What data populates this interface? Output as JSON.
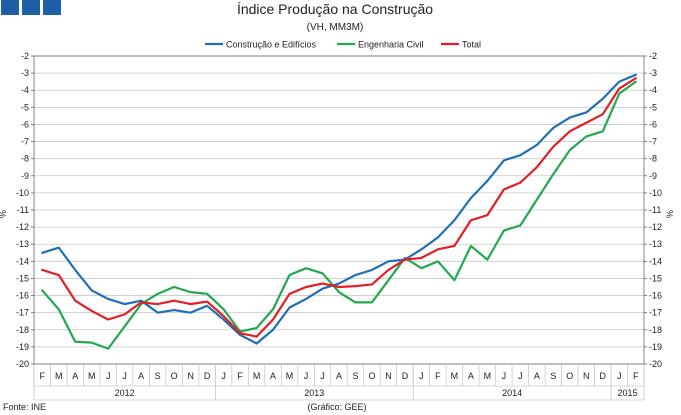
{
  "colors": {
    "logo": "#1f5fa8",
    "construcao": "#1f6fb6",
    "engenharia": "#22a850",
    "total": "#e21e26",
    "grid": "#c8c8c8",
    "axis": "#666666"
  },
  "chart_data": {
    "type": "line",
    "title": "Índice Produção na Construção",
    "subtitle": "(VH, MM3M)",
    "ylabel_left": "%",
    "ylabel_right": "%",
    "ylim": [
      -20,
      -2
    ],
    "yticks": [
      -2,
      -3,
      -4,
      -5,
      -6,
      -7,
      -8,
      -9,
      -10,
      -11,
      -12,
      -13,
      -14,
      -15,
      -16,
      -17,
      -18,
      -19,
      -20
    ],
    "grid": true,
    "legend_position": "top-center",
    "categories": [
      "F",
      "M",
      "A",
      "M",
      "J",
      "J",
      "A",
      "S",
      "O",
      "N",
      "D",
      "J",
      "F",
      "M",
      "A",
      "M",
      "J",
      "J",
      "A",
      "S",
      "O",
      "N",
      "D",
      "J",
      "F",
      "M",
      "A",
      "M",
      "J",
      "J",
      "A",
      "S",
      "O",
      "N",
      "D",
      "J",
      "F"
    ],
    "years": [
      {
        "label": "2012",
        "start": 0,
        "end": 10
      },
      {
        "label": "2013",
        "start": 11,
        "end": 22
      },
      {
        "label": "2014",
        "start": 23,
        "end": 34
      },
      {
        "label": "2015",
        "start": 35,
        "end": 36
      }
    ],
    "series": [
      {
        "name": "Construção e Edifícios",
        "color_key": "construcao",
        "values": [
          -13.5,
          -13.2,
          -14.5,
          -15.7,
          -16.2,
          -16.5,
          -16.3,
          -17.0,
          -16.85,
          -17.0,
          -16.6,
          -17.4,
          -18.3,
          -18.8,
          -18.0,
          -16.7,
          -16.2,
          -15.6,
          -15.3,
          -14.8,
          -14.5,
          -14.0,
          -13.9,
          -13.3,
          -12.6,
          -11.6,
          -10.3,
          -9.3,
          -8.1,
          -7.8,
          -7.2,
          -6.2,
          -5.6,
          -5.3,
          -4.5,
          -3.5,
          -3.1
        ]
      },
      {
        "name": "Engenharia Civil",
        "color_key": "engenharia",
        "values": [
          -15.7,
          -16.8,
          -18.7,
          -18.75,
          -19.1,
          -17.8,
          -16.5,
          -15.9,
          -15.5,
          -15.8,
          -15.9,
          -16.8,
          -18.1,
          -17.9,
          -16.8,
          -14.8,
          -14.4,
          -14.7,
          -15.8,
          -16.4,
          -16.4,
          -15.1,
          -13.8,
          -14.4,
          -14.0,
          -15.1,
          -13.1,
          -13.9,
          -12.2,
          -11.9,
          -10.4,
          -8.9,
          -7.5,
          -6.7,
          -6.4,
          -4.2,
          -3.5
        ]
      },
      {
        "name": "Total",
        "color_key": "total",
        "values": [
          -14.5,
          -14.8,
          -16.3,
          -16.9,
          -17.4,
          -17.1,
          -16.4,
          -16.5,
          -16.3,
          -16.5,
          -16.35,
          -17.2,
          -18.2,
          -18.4,
          -17.4,
          -15.9,
          -15.5,
          -15.3,
          -15.5,
          -15.45,
          -15.35,
          -14.5,
          -13.9,
          -13.8,
          -13.3,
          -13.1,
          -11.6,
          -11.3,
          -9.8,
          -9.4,
          -8.5,
          -7.3,
          -6.4,
          -5.9,
          -5.4,
          -3.9,
          -3.3
        ]
      }
    ]
  },
  "footer": {
    "source": "Fonte: INE",
    "credit": "(Gráfico: GEE)"
  }
}
